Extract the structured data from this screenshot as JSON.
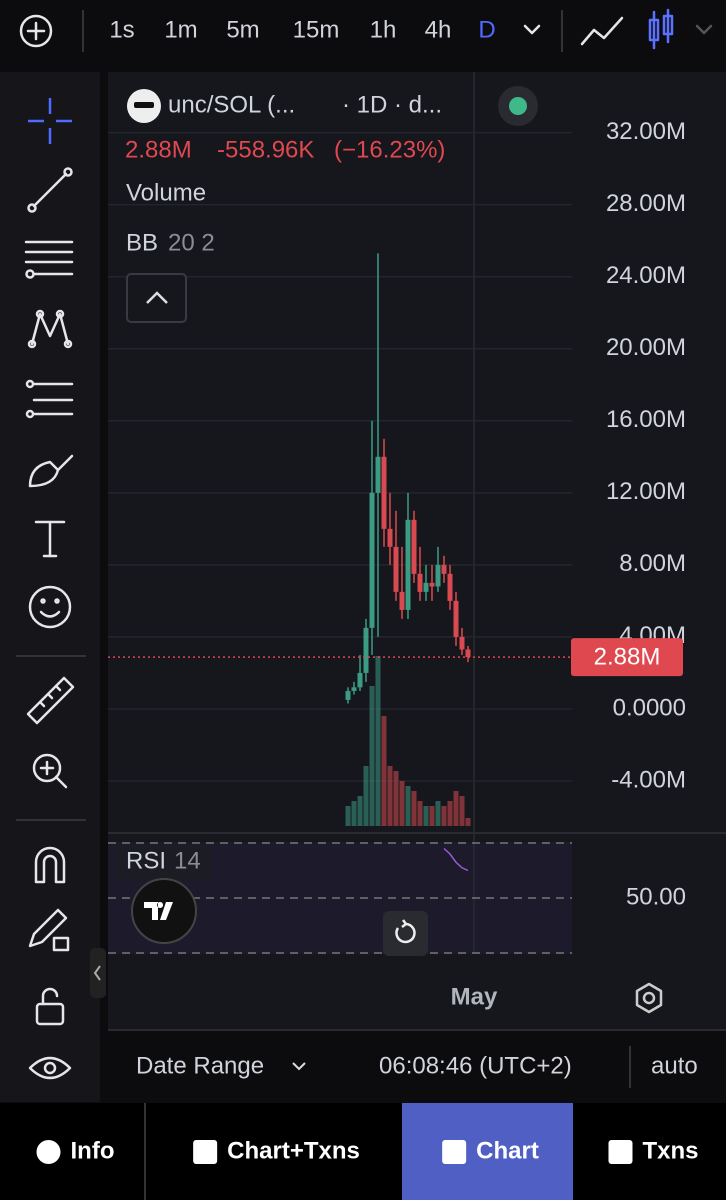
{
  "toolbar": {
    "intervals": [
      "1s",
      "1m",
      "5m",
      "15m",
      "1h",
      "4h",
      "D"
    ],
    "active_index": 6
  },
  "legend": {
    "symbol": "unc/SOL (...",
    "meta": "· 1D · d...",
    "price": "2.88M",
    "change": "-558.96K",
    "change_pct": "(−16.23%)",
    "volume": "Volume",
    "bb": "BB",
    "bb_params": "20 2"
  },
  "chart_data": {
    "type": "candlestick",
    "up_color": "#3b9b83",
    "down_color": "#d84a4f",
    "candles": [
      {
        "o": 500000,
        "h": 1200000,
        "l": 300000,
        "c": 1000000
      },
      {
        "o": 1000000,
        "h": 1500000,
        "l": 800000,
        "c": 1200000
      },
      {
        "o": 1200000,
        "h": 3000000,
        "l": 1000000,
        "c": 2000000
      },
      {
        "o": 2000000,
        "h": 5000000,
        "l": 1500000,
        "c": 4500000
      },
      {
        "o": 4500000,
        "h": 16000000,
        "l": 3000000,
        "c": 12000000
      },
      {
        "o": 12000000,
        "h": 25300000,
        "l": 4000000,
        "c": 14000000
      },
      {
        "o": 14000000,
        "h": 15000000,
        "l": 9000000,
        "c": 10000000
      },
      {
        "o": 10000000,
        "h": 12000000,
        "l": 8000000,
        "c": 9000000
      },
      {
        "o": 9000000,
        "h": 11000000,
        "l": 6000000,
        "c": 6500000
      },
      {
        "o": 6500000,
        "h": 9000000,
        "l": 5000000,
        "c": 5500000
      },
      {
        "o": 5500000,
        "h": 12000000,
        "l": 5000000,
        "c": 10500000
      },
      {
        "o": 10500000,
        "h": 11000000,
        "l": 7000000,
        "c": 7500000
      },
      {
        "o": 7500000,
        "h": 9000000,
        "l": 6000000,
        "c": 6500000
      },
      {
        "o": 6500000,
        "h": 8000000,
        "l": 6000000,
        "c": 7000000
      },
      {
        "o": 7000000,
        "h": 8000000,
        "l": 6000000,
        "c": 6800000
      },
      {
        "o": 6800000,
        "h": 9000000,
        "l": 6500000,
        "c": 8000000
      },
      {
        "o": 8000000,
        "h": 8500000,
        "l": 7000000,
        "c": 7500000
      },
      {
        "o": 7500000,
        "h": 8000000,
        "l": 5500000,
        "c": 6000000
      },
      {
        "o": 6000000,
        "h": 6500000,
        "l": 3500000,
        "c": 4000000
      },
      {
        "o": 4000000,
        "h": 4500000,
        "l": 3000000,
        "c": 3300000
      },
      {
        "o": 3300000,
        "h": 3500000,
        "l": 2600000,
        "c": 2880000
      }
    ],
    "volume": [
      20,
      25,
      30,
      60,
      140,
      170,
      110,
      60,
      55,
      45,
      40,
      35,
      25,
      20,
      20,
      25,
      20,
      25,
      35,
      30,
      8
    ],
    "ylim": [
      -6500000,
      35200000
    ],
    "yticks": [
      {
        "value": 32000000,
        "label": "32.00M"
      },
      {
        "value": 28000000,
        "label": "28.00M"
      },
      {
        "value": 24000000,
        "label": "24.00M"
      },
      {
        "value": 20000000,
        "label": "20.00M"
      },
      {
        "value": 16000000,
        "label": "16.00M"
      },
      {
        "value": 12000000,
        "label": "12.00M"
      },
      {
        "value": 8000000,
        "label": "8.00M"
      },
      {
        "value": 4000000,
        "label": "4.00M"
      },
      {
        "value": 0,
        "label": "0.0000"
      },
      {
        "value": -4000000,
        "label": "-4.00M"
      }
    ],
    "grid": true,
    "last_price": {
      "value": 2880000,
      "label": "2.88M"
    },
    "x_label": "May"
  },
  "rsi": {
    "name": "RSI",
    "period": "14",
    "values": [
      68,
      66,
      63,
      61,
      60
    ],
    "ylim": [
      30,
      70
    ],
    "yticks": [
      {
        "value": 50,
        "label": "50.00"
      }
    ]
  },
  "footer": {
    "date_range": "Date Range",
    "time": "06:08:46 (UTC+2)",
    "scale": "auto"
  },
  "tabs": [
    "Info",
    "Chart+Txns",
    "Chart",
    "Txns"
  ],
  "active_tab": 2
}
